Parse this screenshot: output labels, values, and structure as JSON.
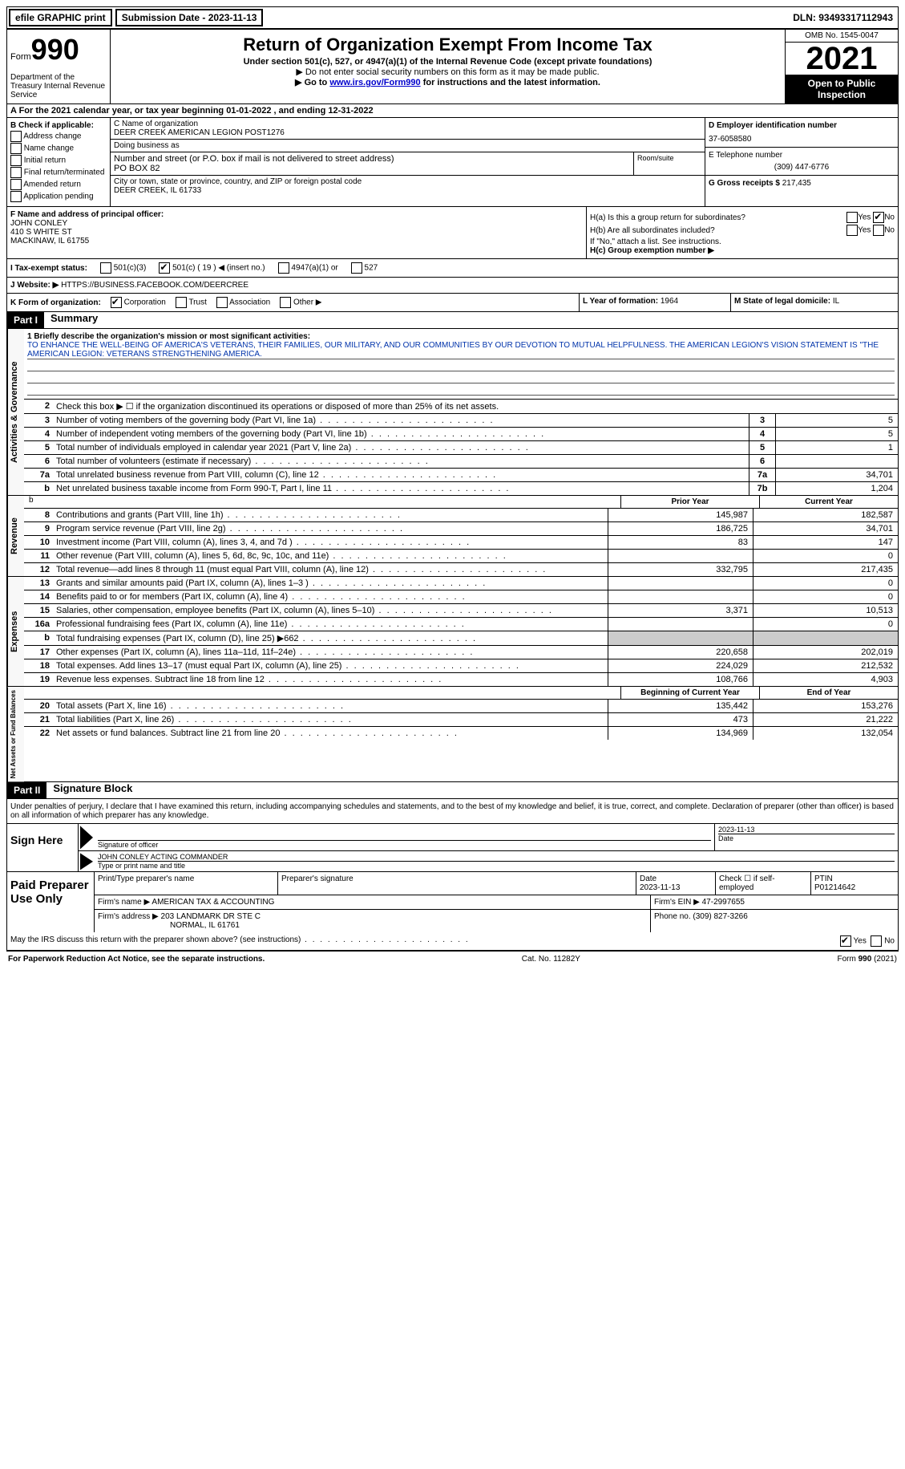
{
  "topbar": {
    "efile": "efile GRAPHIC print",
    "submission_label": "Submission Date - ",
    "submission_date": "2023-11-13",
    "dln_label": "DLN: ",
    "dln": "93493317112943"
  },
  "header": {
    "form_word": "Form",
    "form_number": "990",
    "dept": "Department of the Treasury\nInternal Revenue Service",
    "title": "Return of Organization Exempt From Income Tax",
    "subtitle": "Under section 501(c), 527, or 4947(a)(1) of the Internal Revenue Code (except private foundations)",
    "note1": "▶ Do not enter social security numbers on this form as it may be made public.",
    "note2_pre": "▶ Go to ",
    "note2_link": "www.irs.gov/Form990",
    "note2_post": " for instructions and the latest information.",
    "omb": "OMB No. 1545-0047",
    "year": "2021",
    "inspection": "Open to Public Inspection"
  },
  "lineA": {
    "text": "A  For the 2021 calendar year, or tax year beginning 01-01-2022    , and ending 12-31-2022"
  },
  "boxB": {
    "label": "B Check if applicable:",
    "items": [
      "Address change",
      "Name change",
      "Initial return",
      "Final return/terminated",
      "Amended return",
      "Application pending"
    ]
  },
  "boxC": {
    "name_label": "C Name of organization",
    "name": "DEER CREEK AMERICAN LEGION POST1276",
    "dba_label": "Doing business as",
    "dba": "",
    "street_label": "Number and street (or P.O. box if mail is not delivered to street address)",
    "street": "PO BOX 82",
    "room_label": "Room/suite",
    "room": "",
    "city_label": "City or town, state or province, country, and ZIP or foreign postal code",
    "city": "DEER CREEK, IL  61733"
  },
  "boxD": {
    "ein_label": "D Employer identification number",
    "ein": "37-6058580",
    "tel_label": "E Telephone number",
    "tel": "(309) 447-6776",
    "gross_label": "G Gross receipts $",
    "gross": "217,435"
  },
  "boxF": {
    "label": "F  Name and address of principal officer:",
    "name": "JOHN CONLEY",
    "addr1": "410 S WHITE ST",
    "addr2": "MACKINAW, IL  61755"
  },
  "boxH": {
    "ha": "H(a)  Is this a group return for subordinates?",
    "hb": "H(b)  Are all subordinates included?",
    "hb_note": "If \"No,\" attach a list. See instructions.",
    "hc": "H(c)  Group exemption number ▶",
    "yes": "Yes",
    "no": "No"
  },
  "lineI": {
    "label": "I    Tax-exempt status:",
    "opt1": "501(c)(3)",
    "opt2": "501(c) ( 19 ) ◀ (insert no.)",
    "opt3": "4947(a)(1) or",
    "opt4": "527"
  },
  "lineJ": {
    "label": "J    Website: ▶ ",
    "value": "HTTPS://BUSINESS.FACEBOOK.COM/DEERCREE"
  },
  "lineK": {
    "label": "K Form of organization:",
    "opts": [
      "Corporation",
      "Trust",
      "Association",
      "Other ▶"
    ],
    "L_label": "L Year of formation: ",
    "L_val": "1964",
    "M_label": "M State of legal domicile: ",
    "M_val": "IL"
  },
  "part1": {
    "tag": "Part I",
    "title": "Summary",
    "q1_label": "1   Briefly describe the organization's mission or most significant activities:",
    "q1_text": "TO ENHANCE THE WELL-BEING OF AMERICA'S VETERANS, THEIR FAMILIES, OUR MILITARY, AND OUR COMMUNITIES BY OUR DEVOTION TO MUTUAL HELPFULNESS. THE AMERICAN LEGION'S VISION STATEMENT IS \"THE AMERICAN LEGION: VETERANS STRENGTHENING AMERICA.",
    "q2": "Check this box ▶ ☐ if the organization discontinued its operations or disposed of more than 25% of its net assets.",
    "governance": [
      {
        "n": "3",
        "d": "Number of voting members of the governing body (Part VI, line 1a)",
        "b": "3",
        "v": "5"
      },
      {
        "n": "4",
        "d": "Number of independent voting members of the governing body (Part VI, line 1b)",
        "b": "4",
        "v": "5"
      },
      {
        "n": "5",
        "d": "Total number of individuals employed in calendar year 2021 (Part V, line 2a)",
        "b": "5",
        "v": "1"
      },
      {
        "n": "6",
        "d": "Total number of volunteers (estimate if necessary)",
        "b": "6",
        "v": ""
      },
      {
        "n": "7a",
        "d": "Total unrelated business revenue from Part VIII, column (C), line 12",
        "b": "7a",
        "v": "34,701"
      },
      {
        "n": "b",
        "d": "Net unrelated business taxable income from Form 990-T, Part I, line 11",
        "b": "7b",
        "v": "1,204"
      }
    ],
    "col_prior": "Prior Year",
    "col_current": "Current Year",
    "revenue": [
      {
        "n": "8",
        "d": "Contributions and grants (Part VIII, line 1h)",
        "p": "145,987",
        "c": "182,587"
      },
      {
        "n": "9",
        "d": "Program service revenue (Part VIII, line 2g)",
        "p": "186,725",
        "c": "34,701"
      },
      {
        "n": "10",
        "d": "Investment income (Part VIII, column (A), lines 3, 4, and 7d )",
        "p": "83",
        "c": "147"
      },
      {
        "n": "11",
        "d": "Other revenue (Part VIII, column (A), lines 5, 6d, 8c, 9c, 10c, and 11e)",
        "p": "",
        "c": "0"
      },
      {
        "n": "12",
        "d": "Total revenue—add lines 8 through 11 (must equal Part VIII, column (A), line 12)",
        "p": "332,795",
        "c": "217,435"
      }
    ],
    "expenses": [
      {
        "n": "13",
        "d": "Grants and similar amounts paid (Part IX, column (A), lines 1–3 )",
        "p": "",
        "c": "0"
      },
      {
        "n": "14",
        "d": "Benefits paid to or for members (Part IX, column (A), line 4)",
        "p": "",
        "c": "0"
      },
      {
        "n": "15",
        "d": "Salaries, other compensation, employee benefits (Part IX, column (A), lines 5–10)",
        "p": "3,371",
        "c": "10,513"
      },
      {
        "n": "16a",
        "d": "Professional fundraising fees (Part IX, column (A), line 11e)",
        "p": "",
        "c": "0"
      },
      {
        "n": "b",
        "d": "Total fundraising expenses (Part IX, column (D), line 25) ▶662",
        "p": "SHADE",
        "c": "SHADE"
      },
      {
        "n": "17",
        "d": "Other expenses (Part IX, column (A), lines 11a–11d, 11f–24e)",
        "p": "220,658",
        "c": "202,019"
      },
      {
        "n": "18",
        "d": "Total expenses. Add lines 13–17 (must equal Part IX, column (A), line 25)",
        "p": "224,029",
        "c": "212,532"
      },
      {
        "n": "19",
        "d": "Revenue less expenses. Subtract line 18 from line 12",
        "p": "108,766",
        "c": "4,903"
      }
    ],
    "col_begin": "Beginning of Current Year",
    "col_end": "End of Year",
    "netassets": [
      {
        "n": "20",
        "d": "Total assets (Part X, line 16)",
        "p": "135,442",
        "c": "153,276"
      },
      {
        "n": "21",
        "d": "Total liabilities (Part X, line 26)",
        "p": "473",
        "c": "21,222"
      },
      {
        "n": "22",
        "d": "Net assets or fund balances. Subtract line 21 from line 20",
        "p": "134,969",
        "c": "132,054"
      }
    ],
    "side_gov": "Activities & Governance",
    "side_rev": "Revenue",
    "side_exp": "Expenses",
    "side_net": "Net Assets or Fund Balances"
  },
  "part2": {
    "tag": "Part II",
    "title": "Signature Block",
    "declaration": "Under penalties of perjury, I declare that I have examined this return, including accompanying schedules and statements, and to the best of my knowledge and belief, it is true, correct, and complete. Declaration of preparer (other than officer) is based on all information of which preparer has any knowledge.",
    "sign_here": "Sign Here",
    "sig_officer_label": "Signature of officer",
    "sig_date": "2023-11-13",
    "date_label": "Date",
    "name_title": "JOHN CONLEY  ACTING COMMANDER",
    "name_title_label": "Type or print name and title",
    "paid_prep": "Paid Preparer Use Only",
    "prep_name_label": "Print/Type preparer's name",
    "prep_sig_label": "Preparer's signature",
    "prep_date_label": "Date",
    "prep_date": "2023-11-13",
    "prep_check_label": "Check ☐ if self-employed",
    "ptin_label": "PTIN",
    "ptin": "P01214642",
    "firm_name_label": "Firm's name    ▶",
    "firm_name": "AMERICAN TAX & ACCOUNTING",
    "firm_ein_label": "Firm's EIN ▶",
    "firm_ein": "47-2997655",
    "firm_addr_label": "Firm's address ▶",
    "firm_addr1": "203 LANDMARK DR STE C",
    "firm_addr2": "NORMAL, IL  61761",
    "phone_label": "Phone no. ",
    "phone": "(309) 827-3266",
    "discuss": "May the IRS discuss this return with the preparer shown above? (see instructions)",
    "discuss_yes": "Yes",
    "discuss_no": "No"
  },
  "footer": {
    "left": "For Paperwork Reduction Act Notice, see the separate instructions.",
    "mid": "Cat. No. 11282Y",
    "right": "Form 990 (2021)"
  }
}
